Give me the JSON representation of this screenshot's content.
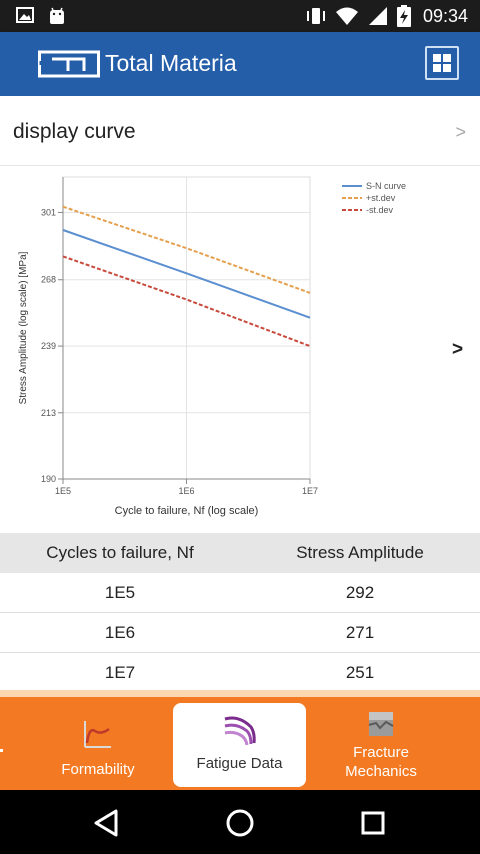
{
  "status_bar": {
    "time": "09:34",
    "icons": [
      "image-icon",
      "android-icon",
      "vibrate-icon",
      "wifi-icon",
      "signal-icon",
      "battery-charging-icon"
    ]
  },
  "app_bar": {
    "title": "Total Materia",
    "icons": [
      "total-materia-logo-icon",
      "grid-menu-icon"
    ]
  },
  "curve_selector": {
    "label": "display curve",
    "chevron": ">"
  },
  "chart_data": {
    "type": "line",
    "xlabel": "Cycle to failure, Nf (log scale)",
    "ylabel": "Stress Amplitude (log scale) [MPa]",
    "x_scale": "log",
    "y_scale": "log",
    "x_ticks": [
      "1E5",
      "1E6",
      "1E7"
    ],
    "y_ticks": [
      "190",
      "213",
      "239",
      "268",
      "301"
    ],
    "xlim": [
      100000,
      10000000
    ],
    "ylim": [
      190,
      320
    ],
    "grid": true,
    "legend_position": "top-right",
    "x": [
      100000,
      1000000,
      10000000
    ],
    "series": [
      {
        "name": "S-N curve",
        "values": [
          292,
          271,
          251
        ],
        "color": "#5b8fd0",
        "style": "solid"
      },
      {
        "name": "+st.dev",
        "values": [
          304,
          283,
          262
        ],
        "color": "#e6a04d",
        "style": "dashed"
      },
      {
        "name": "-st.dev",
        "values": [
          279,
          259,
          239
        ],
        "color": "#c84a3c",
        "style": "dashed"
      }
    ],
    "next_label": ">"
  },
  "table": {
    "headers": [
      "Cycles to failure, Nf",
      "Stress Amplitude"
    ],
    "rows": [
      [
        "1E5",
        "292"
      ],
      [
        "1E6",
        "271"
      ],
      [
        "1E7",
        "251"
      ]
    ]
  },
  "tabs": [
    {
      "label": "Formability",
      "icon": "formability-icon",
      "active": false
    },
    {
      "label": "Fatigue Data",
      "icon": "fatigue-data-icon",
      "active": true
    },
    {
      "label": "Fracture\nMechanics",
      "icon": "fracture-mechanics-icon",
      "active": false
    }
  ],
  "nav_bar": {
    "icons": [
      "back-icon",
      "home-icon",
      "recents-icon"
    ]
  },
  "colors": {
    "app_bar": "#245ea9",
    "tab_bar": "#f37a22",
    "status_bar": "#1c1c1c"
  }
}
